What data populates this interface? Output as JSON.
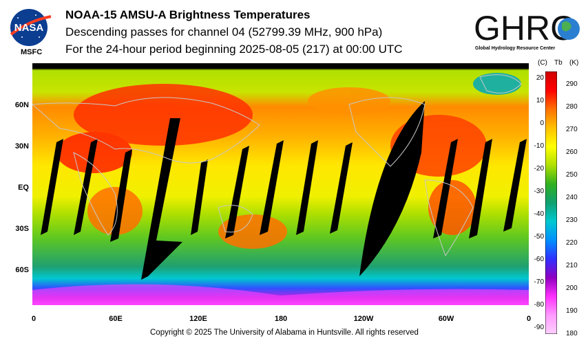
{
  "header": {
    "nasa_logo_text": "NASA",
    "nasa_center": "MSFC",
    "title": "NOAA-15 AMSU-A Brightness Temperatures",
    "subtitle": "Descending passes for channel 04 (52799.39 MHz, 900 hPa)",
    "period": "For the 24-hour period beginning 2025-08-05 (217) at 00:00 UTC",
    "ghrc_logo_text": "GHRC",
    "ghrc_tagline": "Global Hydrology Resource Center"
  },
  "map": {
    "lat_labels": [
      "60N",
      "30N",
      "EQ",
      "30S",
      "60S"
    ],
    "lon_labels": [
      "0",
      "60E",
      "120E",
      "180",
      "120W",
      "60W",
      "0"
    ],
    "colors": {
      "no_data": "#000000",
      "coast": "#c8c8c8"
    }
  },
  "colorbar": {
    "header_c": "(C)",
    "header_tb": "Tb",
    "header_k": "(K)",
    "celsius_ticks": [
      "20",
      "10",
      "0",
      "-10",
      "-20",
      "-30",
      "-40",
      "-50",
      "-60",
      "-70",
      "-80",
      "-90"
    ],
    "kelvin_ticks": [
      "290",
      "280",
      "270",
      "260",
      "250",
      "240",
      "230",
      "220",
      "210",
      "200",
      "190",
      "180"
    ],
    "stops": [
      "#d00000",
      "#ff0000",
      "#ff7000",
      "#ffc000",
      "#ffff00",
      "#b0e000",
      "#30b020",
      "#10a070",
      "#00c8d0",
      "#0090ff",
      "#3030ff",
      "#9000c0",
      "#ff30ff",
      "#ff9cff",
      "#ffd0ff"
    ]
  },
  "footer": {
    "copyright": "Copyright © 2025 The University of Alabama in Huntsville.  All rights reserved"
  }
}
